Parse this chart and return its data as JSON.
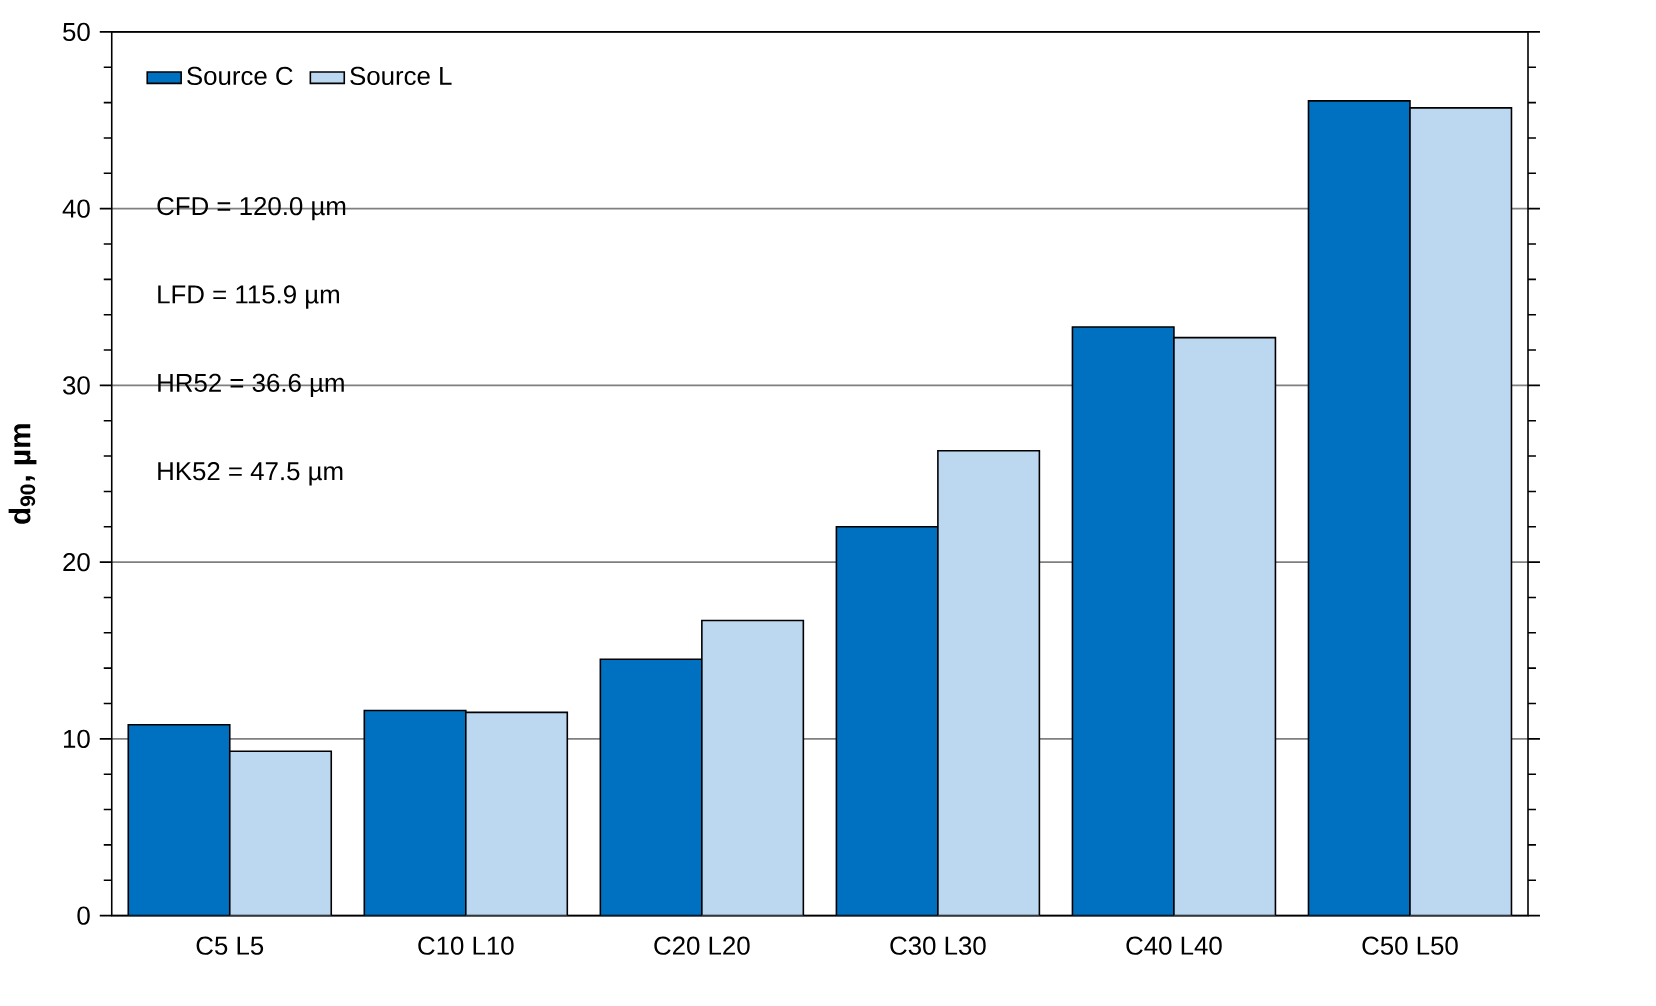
{
  "chart_data": {
    "type": "bar",
    "ylabel": "d$_{90}$, µm",
    "categories": [
      "C5 L5",
      "C10 L10",
      "C20 L20",
      "C30 L30",
      "C40 L40",
      "C50 L50"
    ],
    "series": [
      {
        "name": "Source C",
        "color": "#0070c0",
        "values": [
          10.8,
          11.6,
          14.5,
          22.0,
          33.3,
          46.1
        ]
      },
      {
        "name": "Source L",
        "color": "#bcd8f0",
        "values": [
          9.3,
          11.5,
          16.7,
          26.3,
          32.7,
          45.7
        ]
      }
    ],
    "ylim": [
      0,
      50
    ],
    "yticks": [
      0,
      10,
      20,
      30,
      40,
      50
    ],
    "grid": "y",
    "legend": "top left",
    "annotations": [
      "CFD = 120.0 µm",
      "LFD = 115.9 µm",
      "HR52 = 36.6 µm",
      "HK52 = 47.5 µm"
    ]
  }
}
